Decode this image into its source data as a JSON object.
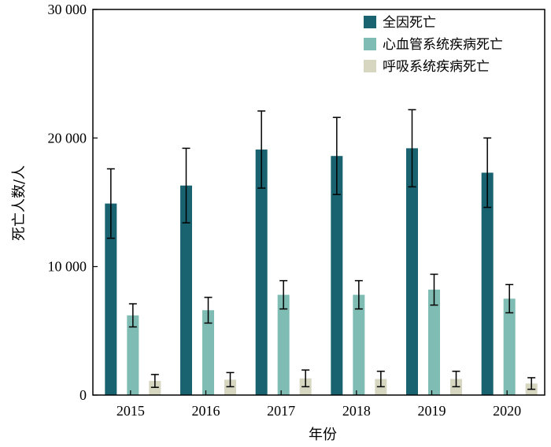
{
  "chart_data": {
    "type": "bar",
    "categories": [
      "2015",
      "2016",
      "2017",
      "2018",
      "2019",
      "2020"
    ],
    "series": [
      {
        "name": "全因死亡",
        "color": "#19626f",
        "values": [
          14900,
          16300,
          19100,
          18600,
          19200,
          17300
        ],
        "error": [
          2700,
          2900,
          3000,
          3000,
          3000,
          2700
        ]
      },
      {
        "name": "心血管系统疾病死亡",
        "color": "#7fbcb3",
        "values": [
          6200,
          6600,
          7800,
          7800,
          8200,
          7500
        ],
        "error": [
          900,
          1000,
          1100,
          1100,
          1200,
          1100
        ]
      },
      {
        "name": "呼吸系统疾病死亡",
        "color": "#d7d6c1",
        "values": [
          1100,
          1200,
          1300,
          1250,
          1250,
          900
        ],
        "error": [
          500,
          550,
          650,
          600,
          600,
          450
        ]
      }
    ],
    "ylim": [
      0,
      30000
    ],
    "yticks": [
      0,
      10000,
      20000,
      30000
    ],
    "ytick_labels": [
      "0",
      "10 000",
      "20 000",
      "30 000"
    ],
    "xlabel": "年份",
    "ylabel": "死亡人数/人",
    "legend_position": "top-right",
    "grid": false
  }
}
